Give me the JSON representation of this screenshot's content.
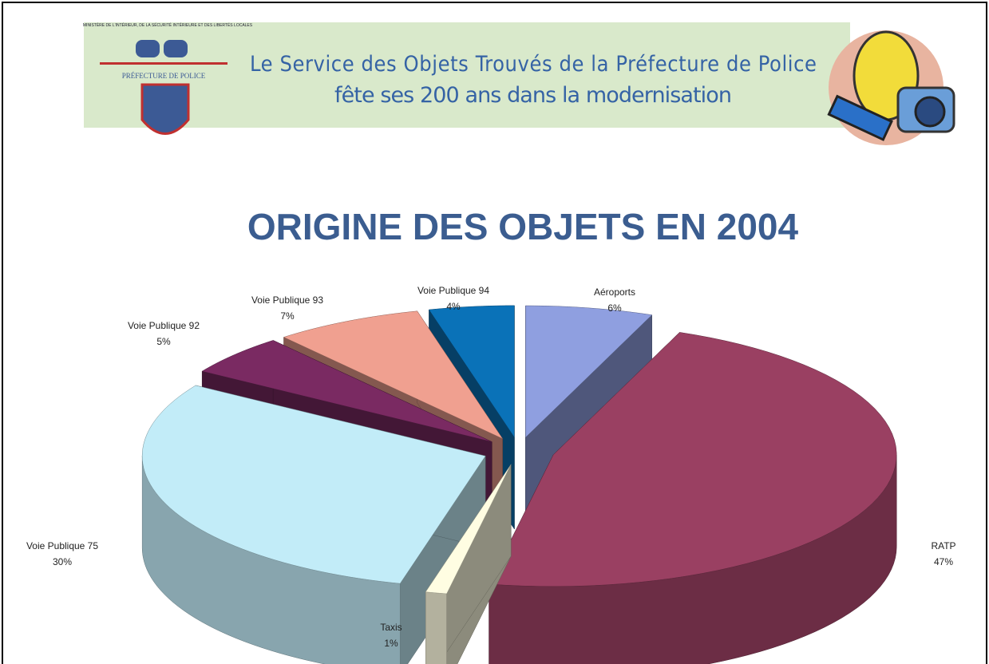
{
  "header": {
    "ministry": "MINISTÈRE DE L'INTÉRIEUR, DE LA SÉCURITÉ INTÉRIEURE ET DES LIBERTÉS LOCALES",
    "logo_text": "PRÉFECTURE DE POLICE",
    "title_line1": "Le Service des Objets Trouvés de la Préfecture de Police",
    "title_line2": "fête ses 200 ans dans la modernisation"
  },
  "chart_data": {
    "type": "pie",
    "title": "ORIGINE DES OBJETS EN 2004",
    "categories": [
      "Aéroports",
      "RATP",
      "Taxis",
      "Voie Publique 75",
      "Voie Publique 92",
      "Voie Publique 93",
      "Voie Publique 94"
    ],
    "values": [
      6,
      47,
      1,
      30,
      5,
      7,
      4
    ],
    "value_labels": [
      "6%",
      "47%",
      "1%",
      "30%",
      "5%",
      "7%",
      "4%"
    ],
    "colors": [
      "#8f9fe0",
      "#9a4062",
      "#fffde2",
      "#c2ecf8",
      "#7a2a62",
      "#f0a090",
      "#0a72b8"
    ]
  }
}
